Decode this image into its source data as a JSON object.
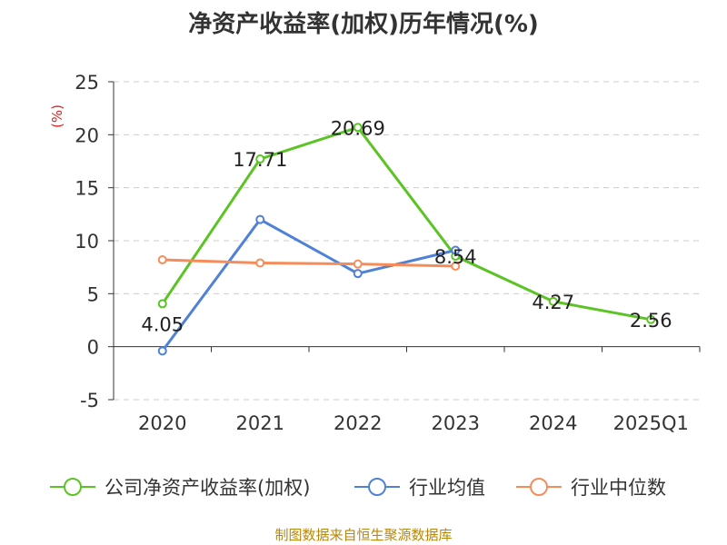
{
  "chart_data": {
    "type": "line",
    "title": "净资产收益率(加权)历年情况(%)",
    "ylabel": "(%)",
    "categories": [
      "2020",
      "2021",
      "2022",
      "2023",
      "2024",
      "2025Q1"
    ],
    "ylim": [
      -5,
      25
    ],
    "yticks": [
      -5,
      0,
      5,
      10,
      15,
      20,
      25
    ],
    "grid": true,
    "legend_position": "bottom",
    "series": [
      {
        "name": "公司净资产收益率(加权)",
        "color": "#5bc424",
        "values": [
          4.05,
          17.71,
          20.69,
          8.54,
          4.27,
          2.56
        ],
        "labels": [
          "4.05",
          "17.71",
          "20.69",
          "8.54",
          "4.27",
          "2.56"
        ]
      },
      {
        "name": "行业均值",
        "color": "#4f81d6",
        "values": [
          -0.4,
          12.0,
          6.9,
          9.1,
          null,
          null
        ]
      },
      {
        "name": "行业中位数",
        "color": "#f58c5a",
        "values": [
          8.2,
          7.9,
          7.8,
          7.6,
          null,
          null
        ]
      }
    ],
    "source": "制图数据来自恒生聚源数据库"
  }
}
